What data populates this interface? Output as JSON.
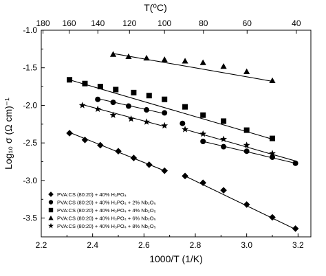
{
  "chart_data": {
    "type": "scatter",
    "xlabel": "1000/T (1/K)",
    "ylabel": "Log₁₀ σ (Ω cm)⁻¹",
    "top_xlabel": "T(⁰C)",
    "xlim": [
      2.2,
      3.25
    ],
    "ylim": [
      -3.75,
      -1.0
    ],
    "x_ticks": [
      2.2,
      2.4,
      2.6,
      2.8,
      3.0,
      3.2
    ],
    "y_ticks": [
      -1.0,
      -1.5,
      -2.0,
      -2.5,
      -3.0,
      -3.5
    ],
    "x_tick_labels": [
      "2.2",
      "2.4",
      "2.6",
      "2.8",
      "3.0",
      "3.2"
    ],
    "y_tick_labels": [
      "-1.0",
      "-1.5",
      "-2.0",
      "-2.5",
      "-3.0",
      "-3.5"
    ],
    "top_ticks_celsius": [
      180,
      160,
      140,
      120,
      100,
      80,
      60,
      40
    ],
    "top_tick_labels": [
      "180",
      "160",
      "140",
      "120",
      "100",
      "80",
      "60",
      "40"
    ],
    "grid": false,
    "legend_position": "bottom-left",
    "series": [
      {
        "name": "PVA:CS (80:20) + 40% H₃PO₄",
        "marker": "diamond",
        "x": [
          2.31,
          2.37,
          2.43,
          2.5,
          2.56,
          2.62,
          2.68,
          2.76,
          2.83,
          2.91,
          3.0,
          3.1,
          3.19
        ],
        "y": [
          -2.37,
          -2.46,
          -2.53,
          -2.61,
          -2.7,
          -2.79,
          -2.87,
          -2.94,
          -3.03,
          -3.13,
          -3.32,
          -3.49,
          -3.64
        ],
        "fit_segments": [
          [
            2.31,
            -2.36,
            2.68,
            -2.87
          ],
          [
            2.76,
            -2.94,
            3.19,
            -3.65
          ]
        ]
      },
      {
        "name": "PVA:CS (80:20) + 40% H₃PO₄ + 2% Nb₂O₅",
        "marker": "circle",
        "x": [
          2.42,
          2.48,
          2.54,
          2.61,
          2.68,
          2.75,
          2.83,
          2.91,
          3.0,
          3.1,
          3.19
        ],
        "y": [
          -1.92,
          -1.96,
          -2.01,
          -2.06,
          -2.1,
          -2.24,
          -2.48,
          -2.55,
          -2.61,
          -2.69,
          -2.77
        ],
        "fit_segments": [
          [
            2.42,
            -1.91,
            2.68,
            -2.11
          ],
          [
            2.83,
            -2.48,
            3.19,
            -2.77
          ]
        ]
      },
      {
        "name": "PVA:CS (80:20) + 40% H₃PO₄ + 4% Nb₂O₅",
        "marker": "square",
        "x": [
          2.31,
          2.37,
          2.43,
          2.49,
          2.56,
          2.62,
          2.68,
          2.76,
          2.83,
          2.91,
          3.0,
          3.1
        ],
        "y": [
          -1.66,
          -1.71,
          -1.75,
          -1.79,
          -1.83,
          -1.87,
          -1.92,
          -2.02,
          -2.13,
          -2.21,
          -2.33,
          -2.44
        ],
        "fit_segments": [
          [
            2.31,
            -1.66,
            3.1,
            -2.45
          ]
        ]
      },
      {
        "name": "PVA:CS (80:20) + 40% H₃PO₄ + 6% Nb₂O₅",
        "marker": "triangle",
        "x": [
          2.48,
          2.54,
          2.61,
          2.68,
          2.76,
          2.83,
          2.91,
          3.0,
          3.1
        ],
        "y": [
          -1.32,
          -1.35,
          -1.37,
          -1.39,
          -1.41,
          -1.43,
          -1.48,
          -1.55,
          -1.67
        ],
        "fit_segments": [
          [
            2.48,
            -1.31,
            3.1,
            -1.68
          ]
        ]
      },
      {
        "name": "PVA:CS (80:20) + 40% H₃PO₄ + 8% Nb₂O₅",
        "marker": "star",
        "x": [
          2.36,
          2.42,
          2.48,
          2.55,
          2.61,
          2.68,
          2.76,
          2.83,
          2.91,
          3.0,
          3.1
        ],
        "y": [
          -2.0,
          -2.05,
          -2.13,
          -2.18,
          -2.22,
          -2.27,
          -2.32,
          -2.38,
          -2.45,
          -2.53,
          -2.64
        ],
        "fit_segments": [
          [
            2.36,
            -1.99,
            2.68,
            -2.28
          ],
          [
            2.76,
            -2.32,
            3.19,
            -2.74
          ]
        ]
      }
    ]
  }
}
